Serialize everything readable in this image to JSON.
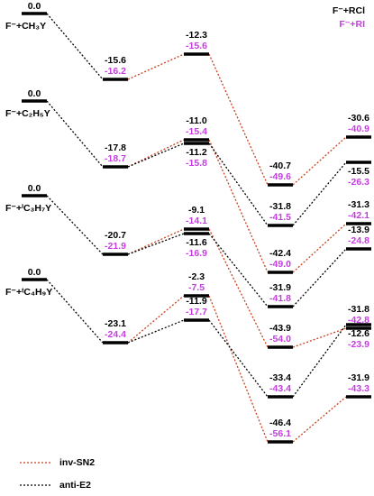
{
  "series_legend": {
    "rcl": "F⁻+RCl",
    "ri": "F⁻+RI"
  },
  "reactants": [
    {
      "energy": "0.0",
      "label": "F⁻+CH₃Y"
    },
    {
      "energy": "0.0",
      "label": "F⁻+C₂H₅Y"
    },
    {
      "energy": "0.0",
      "label": "F⁻+ⁱC₃H₇Y"
    },
    {
      "energy": "0.0",
      "label": "F⁻+ᵗC₄H₉Y"
    }
  ],
  "levels": [
    {
      "rcl": "-15.6",
      "ri": "-16.2"
    },
    {
      "rcl": "-12.3",
      "ri": "-15.6"
    },
    {
      "rcl": "-40.7",
      "ri": "-49.6"
    },
    {
      "rcl": "-30.6",
      "ri": "-40.9"
    },
    {
      "rcl": "-17.8",
      "ri": "-18.7"
    },
    {
      "rcl": "-11.0",
      "ri": "-15.4"
    },
    {
      "rcl": "-11.2",
      "ri": "-15.8"
    },
    {
      "rcl": "-31.8",
      "ri": "-41.5"
    },
    {
      "rcl": "-42.4",
      "ri": "-49.0"
    },
    {
      "rcl": "-15.5",
      "ri": "-26.3"
    },
    {
      "rcl": "-31.3",
      "ri": "-42.1"
    },
    {
      "rcl": "-20.7",
      "ri": "-21.9"
    },
    {
      "rcl": "-9.1",
      "ri": "-14.1"
    },
    {
      "rcl": "-11.6",
      "ri": "-16.9"
    },
    {
      "rcl": "-31.9",
      "ri": "-41.8"
    },
    {
      "rcl": "-43.9",
      "ri": "-54.0"
    },
    {
      "rcl": "-13.9",
      "ri": "-24.8"
    },
    {
      "rcl": "-31.8",
      "ri": "-42.8"
    },
    {
      "rcl": "-12.6",
      "ri": "-23.9"
    },
    {
      "rcl": "-23.1",
      "ri": "-24.4"
    },
    {
      "rcl": "-2.3",
      "ri": "-7.5"
    },
    {
      "rcl": "-11.9",
      "ri": "-17.7"
    },
    {
      "rcl": "-33.4",
      "ri": "-43.4"
    },
    {
      "rcl": "-46.4",
      "ri": "-56.1"
    },
    {
      "rcl": "-31.9",
      "ri": "-43.3"
    }
  ],
  "path_legend": {
    "sn2": "inv-SN2",
    "e2": "anti-E2"
  }
}
